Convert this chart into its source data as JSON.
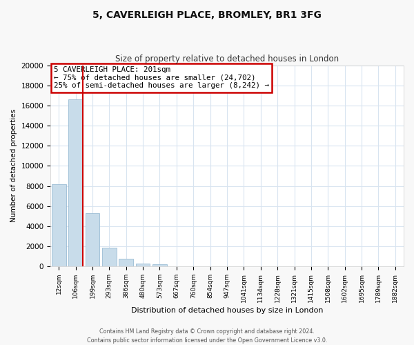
{
  "title": "5, CAVERLEIGH PLACE, BROMLEY, BR1 3FG",
  "subtitle": "Size of property relative to detached houses in London",
  "xlabel": "Distribution of detached houses by size in London",
  "ylabel": "Number of detached properties",
  "bar_labels": [
    "12sqm",
    "106sqm",
    "199sqm",
    "293sqm",
    "386sqm",
    "480sqm",
    "573sqm",
    "667sqm",
    "760sqm",
    "854sqm",
    "947sqm",
    "1041sqm",
    "1134sqm",
    "1228sqm",
    "1321sqm",
    "1415sqm",
    "1508sqm",
    "1602sqm",
    "1695sqm",
    "1789sqm",
    "1882sqm"
  ],
  "bar_values": [
    8200,
    16600,
    5300,
    1850,
    780,
    290,
    250,
    0,
    0,
    0,
    0,
    0,
    0,
    0,
    0,
    0,
    0,
    0,
    0,
    0,
    0
  ],
  "bar_color": "#c8dcea",
  "bar_edge_color": "#9bbcd4",
  "vline_color": "#cc0000",
  "ylim": [
    0,
    20000
  ],
  "yticks": [
    0,
    2000,
    4000,
    6000,
    8000,
    10000,
    12000,
    14000,
    16000,
    18000,
    20000
  ],
  "annotation_title": "5 CAVERLEIGH PLACE: 201sqm",
  "annotation_line1": "← 75% of detached houses are smaller (24,702)",
  "annotation_line2": "25% of semi-detached houses are larger (8,242) →",
  "annotation_box_color": "#ffffff",
  "annotation_box_edge": "#cc0000",
  "footnote1": "Contains HM Land Registry data © Crown copyright and database right 2024.",
  "footnote2": "Contains public sector information licensed under the Open Government Licence v3.0.",
  "fig_background": "#f8f8f8",
  "plot_background": "#ffffff",
  "grid_color": "#d8e4f0"
}
